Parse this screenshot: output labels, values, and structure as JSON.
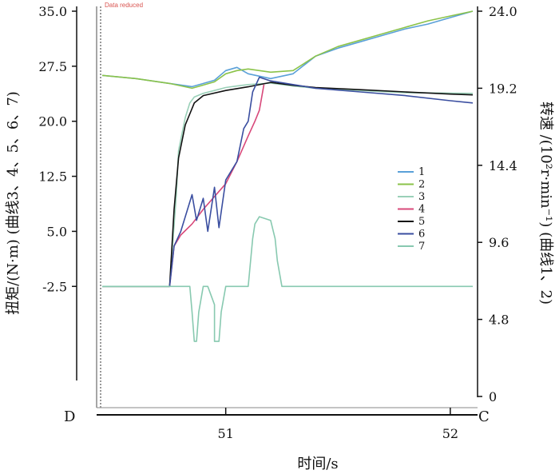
{
  "chart_data": {
    "type": "line",
    "note": "Data reduced",
    "xlabel": "时间/s",
    "ylabel_left": "扭矩/(N·m) (曲线3、4、5、6、7)",
    "ylabel_right": "转速 /(10²r·min⁻¹) (曲线1、2)",
    "corner_left": "D",
    "corner_right": "C",
    "xlim": [
      50.45,
      52.1
    ],
    "xticks": [
      "51",
      "52"
    ],
    "ylim_left": [
      -17.5,
      35.0
    ],
    "yticks_left": [
      "35.0",
      "27.5",
      "20.0",
      "12.5",
      "5.0",
      "-2.5"
    ],
    "ylim_right": [
      0,
      24.0
    ],
    "yticks_right": [
      "24.0",
      "19.2",
      "14.4",
      "9.6",
      "4.8",
      "0"
    ],
    "series": [
      {
        "name": "1",
        "axis": "right",
        "color": "#5aa0d8",
        "x": [
          50.45,
          50.6,
          50.75,
          50.85,
          50.95,
          51.0,
          51.05,
          51.1,
          51.2,
          51.3,
          51.4,
          51.5,
          51.6,
          51.7,
          51.8,
          51.9,
          52.0,
          52.1
        ],
        "y": [
          20.0,
          19.8,
          19.5,
          19.3,
          19.7,
          20.3,
          20.5,
          20.1,
          19.8,
          20.1,
          21.2,
          21.7,
          22.1,
          22.5,
          22.9,
          23.2,
          23.6,
          24.0
        ]
      },
      {
        "name": "2",
        "axis": "right",
        "color": "#8bc34a",
        "x": [
          50.45,
          50.6,
          50.75,
          50.85,
          50.95,
          51.0,
          51.05,
          51.1,
          51.2,
          51.3,
          51.4,
          51.5,
          51.6,
          51.7,
          51.8,
          51.9,
          52.0,
          52.1
        ],
        "y": [
          20.0,
          19.8,
          19.5,
          19.2,
          19.6,
          20.1,
          20.3,
          20.4,
          20.2,
          20.3,
          21.2,
          21.8,
          22.2,
          22.6,
          23.0,
          23.4,
          23.7,
          24.0
        ]
      },
      {
        "name": "3",
        "axis": "left",
        "color": "#9ad0b8",
        "x": [
          50.45,
          50.75,
          50.78,
          50.79,
          50.82,
          50.84,
          50.86,
          50.9,
          50.95,
          51.0,
          51.05,
          51.1,
          51.2,
          51.3,
          51.4,
          51.6,
          51.8,
          52.1
        ],
        "y": [
          -2.5,
          -2.5,
          10.0,
          16.0,
          20.5,
          22.5,
          23.3,
          23.8,
          24.2,
          24.6,
          24.8,
          25.0,
          25.2,
          24.8,
          24.5,
          24.2,
          23.9,
          23.8
        ]
      },
      {
        "name": "4",
        "axis": "left",
        "color": "#d8487a",
        "x": [
          50.75,
          50.77,
          50.8,
          50.85,
          50.9,
          51.0,
          51.05,
          51.1,
          51.13,
          51.15,
          51.17
        ],
        "y": [
          -2.5,
          3.0,
          4.5,
          6.0,
          8.0,
          11.5,
          14.5,
          18.0,
          20.0,
          21.5,
          25.0
        ]
      },
      {
        "name": "5",
        "axis": "left",
        "color": "#111111",
        "x": [
          50.45,
          50.75,
          50.77,
          50.79,
          50.82,
          50.84,
          50.86,
          50.9,
          51.0,
          51.1,
          51.2,
          51.3,
          51.4,
          51.6,
          51.8,
          52.0,
          52.1
        ],
        "y": [
          -2.5,
          -2.5,
          8.0,
          15.0,
          19.5,
          21.0,
          22.5,
          23.5,
          24.2,
          24.7,
          25.3,
          24.9,
          24.6,
          24.3,
          24.0,
          23.7,
          23.6
        ]
      },
      {
        "name": "6",
        "axis": "left",
        "color": "#3a4ea0",
        "x": [
          50.75,
          50.77,
          50.8,
          50.85,
          50.87,
          50.9,
          50.92,
          50.95,
          50.97,
          51.0,
          51.05,
          51.08,
          51.1,
          51.12,
          51.15,
          51.2,
          51.3,
          51.4,
          51.6,
          51.8,
          52.0,
          52.1
        ],
        "y": [
          -2.5,
          3.0,
          5.0,
          10.0,
          6.5,
          9.5,
          5.0,
          11.0,
          5.5,
          12.0,
          14.5,
          19.0,
          20.0,
          24.0,
          26.0,
          25.5,
          25.0,
          24.5,
          24.0,
          23.5,
          22.8,
          22.5
        ]
      },
      {
        "name": "7",
        "axis": "left",
        "color": "#88c9b0",
        "x": [
          50.45,
          50.84,
          50.85,
          50.86,
          50.87,
          50.88,
          50.9,
          50.9,
          50.92,
          50.95,
          50.95,
          50.96,
          50.97,
          50.98,
          51.0,
          51.1,
          51.12,
          51.13,
          51.15,
          51.2,
          51.22,
          51.23,
          51.25,
          52.1
        ],
        "y": [
          -2.5,
          -2.5,
          -6.0,
          -10.0,
          -10.0,
          -6.0,
          -2.5,
          -2.5,
          -2.5,
          -5.0,
          -10.0,
          -10.0,
          -10.0,
          -6.0,
          -2.5,
          -2.5,
          4.0,
          6.0,
          7.0,
          6.5,
          4.0,
          1.0,
          -2.5,
          -2.5
        ]
      }
    ]
  }
}
